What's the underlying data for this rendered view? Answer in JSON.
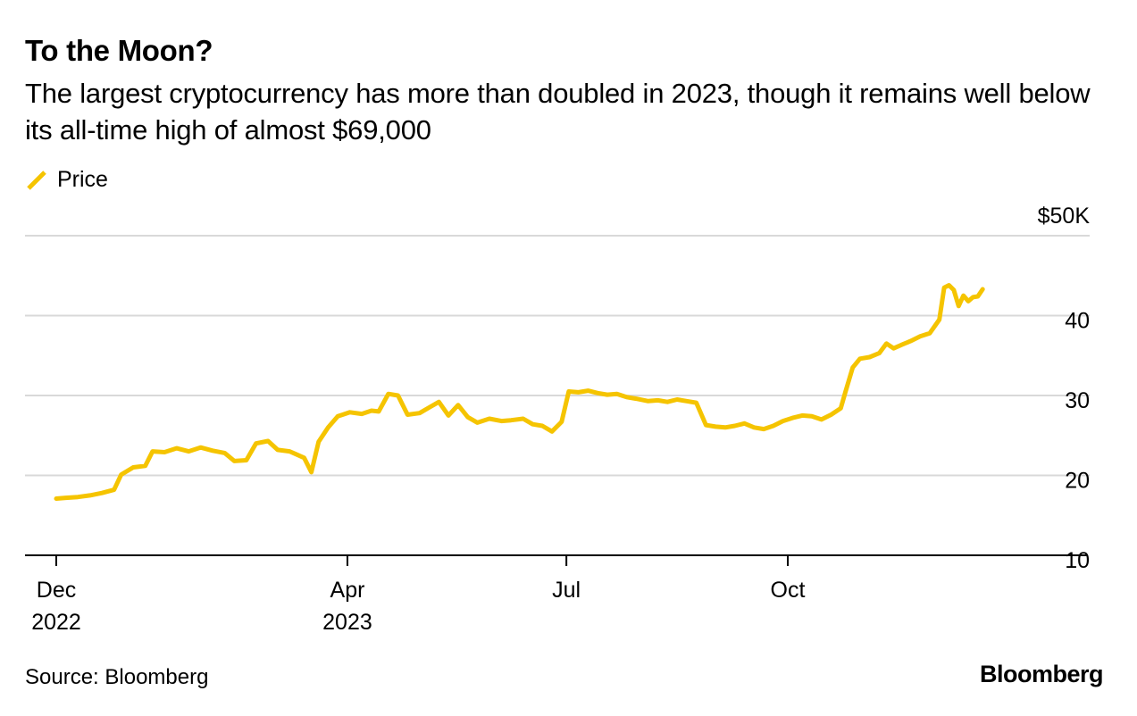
{
  "header": {
    "title": "To the Moon?",
    "subtitle": "The largest cryptocurrency has more than doubled in 2023, though it remains well below its all-time high of almost $69,000"
  },
  "legend": {
    "label": "Price",
    "icon": "line-swatch-icon"
  },
  "footer": {
    "source": "Source: Bloomberg",
    "brand": "Bloomberg"
  },
  "colors": {
    "line": "#F5C400",
    "grid": "#d9d9d9",
    "axis": "#000000"
  },
  "chart_data": {
    "type": "line",
    "title": "To the Moon?",
    "xlabel": "",
    "ylabel": "",
    "ylim": [
      10,
      50
    ],
    "yticks": [
      {
        "value": 50,
        "label": "$50K"
      },
      {
        "value": 40,
        "label": "40"
      },
      {
        "value": 30,
        "label": "30"
      },
      {
        "value": 20,
        "label": "20"
      },
      {
        "value": 10,
        "label": "10"
      }
    ],
    "xlim": [
      "2022-12-01",
      "2023-12-31"
    ],
    "xticks": [
      {
        "date": "2022-12-01",
        "label1": "Dec",
        "label2": "2022"
      },
      {
        "date": "2023-04-01",
        "label1": "Apr",
        "label2": "2023"
      },
      {
        "date": "2023-07-01",
        "label1": "Jul",
        "label2": ""
      },
      {
        "date": "2023-10-01",
        "label1": "Oct",
        "label2": ""
      }
    ],
    "series": [
      {
        "name": "Price",
        "unit": "USD thousands",
        "points": [
          [
            "2022-12-01",
            17.1
          ],
          [
            "2022-12-05",
            17.2
          ],
          [
            "2022-12-10",
            17.3
          ],
          [
            "2022-12-15",
            17.5
          ],
          [
            "2022-12-20",
            17.8
          ],
          [
            "2022-12-25",
            18.2
          ],
          [
            "2022-12-28",
            20.1
          ],
          [
            "2023-01-02",
            21.0
          ],
          [
            "2023-01-07",
            21.2
          ],
          [
            "2023-01-10",
            23.0
          ],
          [
            "2023-01-15",
            22.9
          ],
          [
            "2023-01-20",
            23.4
          ],
          [
            "2023-01-25",
            23.0
          ],
          [
            "2023-01-30",
            23.5
          ],
          [
            "2023-02-04",
            23.1
          ],
          [
            "2023-02-09",
            22.8
          ],
          [
            "2023-02-13",
            21.8
          ],
          [
            "2023-02-18",
            21.9
          ],
          [
            "2023-02-22",
            24.0
          ],
          [
            "2023-02-27",
            24.3
          ],
          [
            "2023-03-03",
            23.2
          ],
          [
            "2023-03-08",
            23.0
          ],
          [
            "2023-03-11",
            22.6
          ],
          [
            "2023-03-14",
            22.2
          ],
          [
            "2023-03-17",
            20.4
          ],
          [
            "2023-03-20",
            24.2
          ],
          [
            "2023-03-24",
            26.0
          ],
          [
            "2023-03-28",
            27.4
          ],
          [
            "2023-04-02",
            27.9
          ],
          [
            "2023-04-07",
            27.7
          ],
          [
            "2023-04-11",
            28.1
          ],
          [
            "2023-04-14",
            28.0
          ],
          [
            "2023-04-18",
            30.2
          ],
          [
            "2023-04-22",
            30.0
          ],
          [
            "2023-04-26",
            27.6
          ],
          [
            "2023-05-01",
            27.8
          ],
          [
            "2023-05-05",
            28.5
          ],
          [
            "2023-05-09",
            29.2
          ],
          [
            "2023-05-13",
            27.5
          ],
          [
            "2023-05-17",
            28.8
          ],
          [
            "2023-05-21",
            27.3
          ],
          [
            "2023-05-25",
            26.6
          ],
          [
            "2023-05-30",
            27.1
          ],
          [
            "2023-06-04",
            26.8
          ],
          [
            "2023-06-08",
            26.9
          ],
          [
            "2023-06-13",
            27.1
          ],
          [
            "2023-06-17",
            26.4
          ],
          [
            "2023-06-21",
            26.2
          ],
          [
            "2023-06-25",
            25.5
          ],
          [
            "2023-06-29",
            26.7
          ],
          [
            "2023-07-02",
            30.5
          ],
          [
            "2023-07-06",
            30.4
          ],
          [
            "2023-07-10",
            30.6
          ],
          [
            "2023-07-14",
            30.3
          ],
          [
            "2023-07-18",
            30.1
          ],
          [
            "2023-07-22",
            30.2
          ],
          [
            "2023-07-26",
            29.8
          ],
          [
            "2023-07-30",
            29.6
          ],
          [
            "2023-08-04",
            29.3
          ],
          [
            "2023-08-08",
            29.4
          ],
          [
            "2023-08-12",
            29.2
          ],
          [
            "2023-08-16",
            29.5
          ],
          [
            "2023-08-20",
            29.3
          ],
          [
            "2023-08-24",
            29.1
          ],
          [
            "2023-08-28",
            26.3
          ],
          [
            "2023-09-01",
            26.1
          ],
          [
            "2023-09-05",
            26.0
          ],
          [
            "2023-09-09",
            26.2
          ],
          [
            "2023-09-13",
            26.5
          ],
          [
            "2023-09-17",
            26.0
          ],
          [
            "2023-09-21",
            25.8
          ],
          [
            "2023-09-25",
            26.2
          ],
          [
            "2023-09-29",
            26.8
          ],
          [
            "2023-10-03",
            27.2
          ],
          [
            "2023-10-07",
            27.5
          ],
          [
            "2023-10-11",
            27.4
          ],
          [
            "2023-10-15",
            27.0
          ],
          [
            "2023-10-19",
            27.6
          ],
          [
            "2023-10-23",
            28.4
          ],
          [
            "2023-10-25",
            30.5
          ],
          [
            "2023-10-28",
            33.5
          ],
          [
            "2023-10-31",
            34.6
          ],
          [
            "2023-11-04",
            34.8
          ],
          [
            "2023-11-08",
            35.3
          ],
          [
            "2023-11-11",
            36.5
          ],
          [
            "2023-11-14",
            35.9
          ],
          [
            "2023-11-17",
            36.3
          ],
          [
            "2023-11-21",
            36.8
          ],
          [
            "2023-11-25",
            37.4
          ],
          [
            "2023-11-29",
            37.8
          ],
          [
            "2023-12-03",
            39.5
          ],
          [
            "2023-12-05",
            43.5
          ],
          [
            "2023-12-07",
            43.8
          ],
          [
            "2023-12-09",
            43.2
          ],
          [
            "2023-12-11",
            41.2
          ],
          [
            "2023-12-13",
            42.5
          ],
          [
            "2023-12-15",
            41.8
          ],
          [
            "2023-12-17",
            42.3
          ],
          [
            "2023-12-19",
            42.4
          ],
          [
            "2023-12-21",
            43.3
          ]
        ]
      }
    ]
  }
}
